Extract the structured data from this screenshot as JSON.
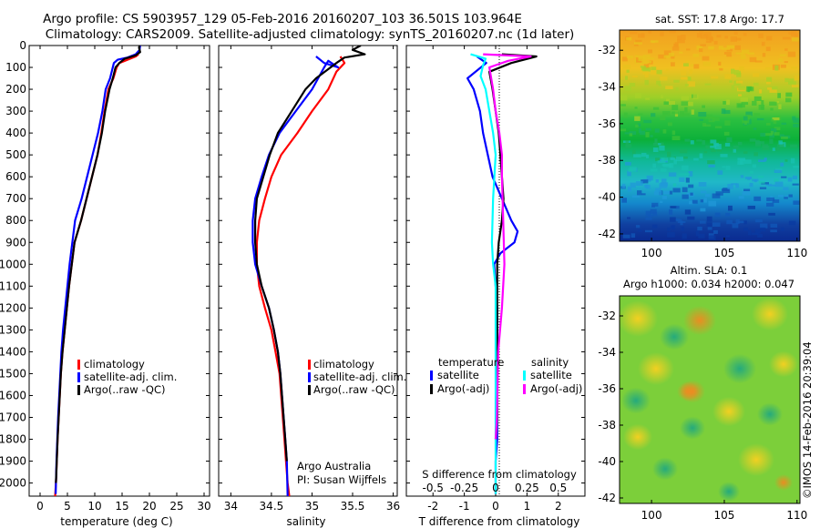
{
  "titles": {
    "line1": "Argo profile: CS 5903957_129 05-Feb-2016 20160207_103 36.501S 103.964E",
    "line2": "Climatology: CARS2009. Satellite-adjusted climatology: synTS_20160207.nc (1d later)"
  },
  "colors": {
    "climatology": "#ff0000",
    "satellite": "#0000ff",
    "argo": "#000000",
    "cyan": "#00ffff",
    "magenta": "#ff00ff"
  },
  "yticks": [
    "0",
    "100",
    "200",
    "300",
    "400",
    "500",
    "600",
    "700",
    "800",
    "900",
    "1000",
    "1100",
    "1200",
    "1300",
    "1400",
    "1500",
    "1600",
    "1700",
    "1800",
    "1900",
    "2000"
  ],
  "chart_data": [
    {
      "type": "line",
      "xlabel": "temperature (deg C)",
      "xticks": [
        "0",
        "5",
        "10",
        "15",
        "20",
        "25",
        "30"
      ],
      "xlim": [
        -2,
        31
      ],
      "ylim": [
        2060,
        0
      ],
      "legend": [
        "climatology",
        "satellite-adj. clim.",
        "Argo(..raw -QC)"
      ],
      "series": [
        {
          "name": "climatology",
          "x": [
            18,
            17.5,
            15.5,
            14.5,
            14,
            13.4,
            12.5,
            11.8,
            11.2,
            10.5,
            9.5,
            8.5,
            7.5,
            6.3,
            5.8,
            5.3,
            4.9,
            4.5,
            4.1,
            3.8,
            3.6,
            3.4,
            3.2,
            3.05,
            2.9,
            2.75
          ],
          "y": [
            40,
            50,
            70,
            80,
            100,
            150,
            200,
            300,
            400,
            500,
            600,
            700,
            800,
            900,
            1000,
            1100,
            1200,
            1300,
            1400,
            1500,
            1600,
            1700,
            1800,
            1900,
            2000,
            2060
          ]
        },
        {
          "name": "satellite-adj. clim.",
          "x": [
            18.3,
            18.2,
            17.5,
            16,
            14.2,
            13.5,
            12.8,
            12,
            11.4,
            10.6,
            9.6,
            8.6,
            7.6,
            6.4,
            5.9,
            5.4,
            5,
            4.6,
            4.2,
            3.9,
            3.7,
            3.5,
            3.3,
            3.15,
            3,
            2.85
          ],
          "y": [
            0,
            20,
            40,
            55,
            65,
            80,
            150,
            200,
            300,
            400,
            500,
            600,
            700,
            800,
            900,
            1000,
            1100,
            1200,
            1300,
            1400,
            1500,
            1600,
            1700,
            1800,
            1900,
            2050
          ]
        },
        {
          "name": "Argo(..raw -QC)",
          "x": [
            18.2,
            18.1,
            18.3,
            17.5,
            15.5,
            14.5,
            13.8,
            13.3,
            12.7,
            11.9,
            11.3,
            10.5,
            9.5,
            8.5,
            7.5,
            6.3,
            5.8,
            5.3,
            4.9,
            4.5,
            4.1,
            3.8,
            3.6,
            3.4,
            3.2,
            3.05,
            2.9
          ],
          "y": [
            0,
            10,
            30,
            45,
            60,
            80,
            100,
            150,
            200,
            300,
            400,
            500,
            600,
            700,
            800,
            900,
            1000,
            1100,
            1200,
            1300,
            1400,
            1500,
            1600,
            1700,
            1800,
            1900,
            2000
          ]
        }
      ]
    },
    {
      "type": "line",
      "xlabel": "salinity",
      "xticks": [
        "34",
        "34.5",
        "35",
        "35.5",
        "36"
      ],
      "xlim": [
        33.85,
        36.05
      ],
      "ylim": [
        2060,
        0
      ],
      "legend": [
        "climatology",
        "satellite-adj. clim.",
        "Argo(..raw -QC)"
      ],
      "annotation": [
        "Argo Australia",
        "PI: Susan Wijffels"
      ],
      "series": [
        {
          "name": "climatology",
          "x": [
            35.35,
            35.4,
            35.3,
            35.2,
            35.0,
            34.82,
            34.62,
            34.5,
            34.42,
            34.35,
            34.32,
            34.32,
            34.35,
            34.42,
            34.5,
            34.55,
            34.6,
            34.62,
            34.64,
            34.66,
            34.68,
            34.7,
            34.71,
            34.72
          ],
          "y": [
            50,
            80,
            120,
            200,
            300,
            400,
            500,
            600,
            700,
            800,
            900,
            1000,
            1100,
            1200,
            1300,
            1400,
            1500,
            1600,
            1700,
            1800,
            1900,
            2000,
            2030,
            2060
          ]
        },
        {
          "name": "satellite-adj. clim.",
          "x": [
            35.05,
            35.15,
            35.32,
            35.2,
            35.15,
            35.0,
            34.8,
            34.6,
            34.47,
            34.38,
            34.3,
            34.27,
            34.27,
            34.3,
            34.38,
            34.47,
            34.53,
            34.58,
            34.61,
            34.63,
            34.65,
            34.67,
            34.69,
            34.7
          ],
          "y": [
            50,
            80,
            100,
            70,
            100,
            200,
            300,
            400,
            500,
            600,
            700,
            800,
            900,
            1000,
            1100,
            1200,
            1300,
            1400,
            1500,
            1600,
            1700,
            1800,
            1900,
            2060
          ]
        },
        {
          "name": "Argo(..raw -QC)",
          "x": [
            35.6,
            35.5,
            35.65,
            35.4,
            35.3,
            35.05,
            34.92,
            34.75,
            34.58,
            34.48,
            34.4,
            34.32,
            34.3,
            34.3,
            34.32,
            34.38,
            34.47,
            34.53,
            34.58,
            34.61,
            34.63,
            34.65,
            34.67,
            34.69
          ],
          "y": [
            0,
            20,
            40,
            55,
            80,
            150,
            200,
            300,
            400,
            500,
            600,
            700,
            800,
            900,
            1000,
            1100,
            1200,
            1300,
            1400,
            1500,
            1600,
            1700,
            1800,
            1900
          ]
        }
      ]
    },
    {
      "type": "line",
      "xlabel": "T difference from climatology",
      "xlabel_top": "S difference from climatology",
      "xticks": [
        "-2",
        "-1",
        "0",
        "1",
        "2"
      ],
      "xticks_top": [
        "-0.5",
        "-0.25",
        "0",
        "0.25",
        "0.5"
      ],
      "xlim": [
        -2.85,
        2.85
      ],
      "ylim": [
        2060,
        0
      ],
      "legend_headers": [
        "temperature",
        "salinity"
      ],
      "legend": [
        "satellite",
        "Argo(-adj)",
        "satellite",
        "Argo(-adj)"
      ],
      "series": [
        {
          "name": "temperature satellite",
          "x": [
            -0.6,
            -0.3,
            -0.9,
            -0.7,
            -0.5,
            -0.4,
            -0.25,
            -0.1,
            0.2,
            0.5,
            0.7,
            0.6,
            0.15,
            -0.05,
            0.0,
            0.05,
            0.05,
            0.05,
            0.05,
            0.0,
            0.0,
            0.0
          ],
          "y": [
            50,
            80,
            150,
            200,
            300,
            400,
            500,
            600,
            700,
            800,
            850,
            900,
            950,
            1000,
            1100,
            1200,
            1400,
            1600,
            1800,
            1900,
            2000,
            2050
          ]
        },
        {
          "name": "temperature Argo(-adj)",
          "x": [
            0.2,
            1.3,
            0.5,
            -0.2,
            -0.1,
            0.0,
            0.1,
            0.15,
            0.2,
            0.25,
            0.2,
            0.1,
            0.05,
            0.05,
            0.05,
            0.05,
            0.05,
            0.05,
            0.05,
            0.05,
            0.0
          ],
          "y": [
            40,
            50,
            80,
            120,
            200,
            300,
            400,
            500,
            600,
            700,
            800,
            900,
            1000,
            1100,
            1200,
            1300,
            1400,
            1500,
            1600,
            1700,
            1800
          ]
        },
        {
          "name": "salinity satellite",
          "x": [
            -0.2,
            -0.08,
            -0.1,
            -0.12,
            -0.08,
            -0.05,
            -0.02,
            0.0,
            -0.02,
            -0.03,
            -0.02,
            0.0,
            0.0,
            0.0,
            0.0,
            0.0,
            0.0
          ],
          "y": [
            40,
            60,
            90,
            140,
            200,
            300,
            400,
            500,
            700,
            900,
            1000,
            1100,
            1300,
            1500,
            1700,
            1900,
            2050
          ]
        },
        {
          "name": "salinity Argo(-adj)",
          "x": [
            -0.1,
            0.28,
            0.1,
            -0.05,
            -0.02,
            0.0,
            0.03,
            0.05,
            0.05,
            0.06,
            0.07,
            0.05,
            0.02,
            0.01,
            0.0
          ],
          "y": [
            40,
            50,
            70,
            100,
            200,
            300,
            400,
            500,
            600,
            800,
            1000,
            1200,
            1400,
            1700,
            1800
          ]
        }
      ]
    },
    {
      "type": "heatmap",
      "title": "sat. SST: 17.8  Argo: 17.7",
      "xticks": [
        "100",
        "105",
        "110"
      ],
      "yticks": [
        "-32",
        "-34",
        "-36",
        "-38",
        "-40",
        "-42"
      ]
    },
    {
      "type": "heatmap",
      "title": "Altim. SLA: 0.1",
      "subtitle": "Argo h1000: 0.034 h2000: 0.047",
      "xticks": [
        "100",
        "105",
        "110"
      ],
      "yticks": [
        "-32",
        "-34",
        "-36",
        "-38",
        "-40",
        "-42"
      ]
    }
  ],
  "footer_stamp": "©IMOS 14-Feb-2016 20:39:04"
}
